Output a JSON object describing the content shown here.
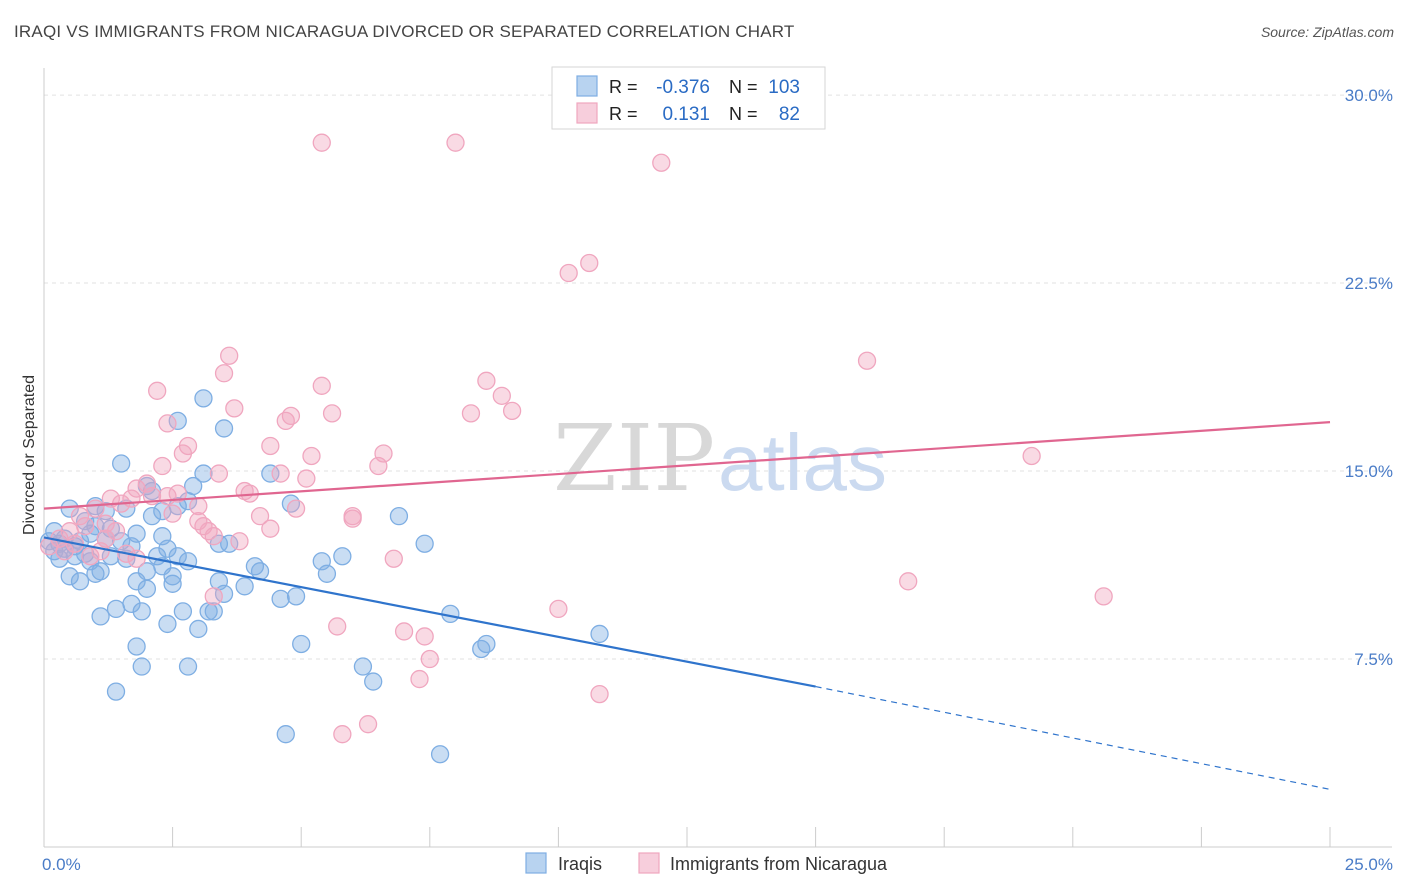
{
  "title": "IRAQI VS IMMIGRANTS FROM NICARAGUA DIVORCED OR SEPARATED CORRELATION CHART",
  "source": "Source: ZipAtlas.com",
  "watermark": {
    "zip": "ZIP",
    "atlas": "atlas"
  },
  "chart_data": {
    "type": "scatter",
    "ylabel": "Divorced or Separated",
    "xlim": [
      0,
      25
    ],
    "ylim": [
      0,
      31
    ],
    "x_ticks": [
      {
        "value": 0,
        "label": "0.0%"
      },
      {
        "value": 25,
        "label": "25.0%"
      }
    ],
    "y_ticks": [
      {
        "value": 7.5,
        "label": "7.5%"
      },
      {
        "value": 15,
        "label": "15.0%"
      },
      {
        "value": 22.5,
        "label": "22.5%"
      },
      {
        "value": 30,
        "label": "30.0%"
      }
    ],
    "grid": true,
    "legend_placement": "top-center",
    "series": [
      {
        "name": "Iraqis",
        "color": "#7eaee3",
        "line_color": "#2f74cc",
        "R": "-0.376",
        "N": "103",
        "trend": {
          "x0": 0,
          "y0": 12.35,
          "x1": 15,
          "y1": 6.4,
          "dash_x1": 25,
          "dash_y1": 2.3
        },
        "points": [
          [
            0.1,
            12.2
          ],
          [
            0.2,
            11.8
          ],
          [
            0.2,
            12.6
          ],
          [
            0.3,
            12.1
          ],
          [
            0.3,
            11.5
          ],
          [
            0.4,
            12.3
          ],
          [
            0.4,
            11.9
          ],
          [
            0.5,
            13.5
          ],
          [
            0.5,
            10.8
          ],
          [
            0.6,
            12.0
          ],
          [
            0.6,
            11.6
          ],
          [
            0.7,
            10.6
          ],
          [
            0.7,
            12.2
          ],
          [
            0.8,
            13.0
          ],
          [
            0.8,
            11.7
          ],
          [
            0.9,
            12.5
          ],
          [
            0.9,
            11.4
          ],
          [
            1.0,
            12.8
          ],
          [
            1.0,
            10.9
          ],
          [
            1.0,
            13.6
          ],
          [
            1.1,
            11.0
          ],
          [
            1.1,
            9.2
          ],
          [
            1.2,
            12.3
          ],
          [
            1.2,
            13.4
          ],
          [
            1.3,
            11.6
          ],
          [
            1.3,
            12.7
          ],
          [
            1.4,
            6.2
          ],
          [
            1.4,
            9.5
          ],
          [
            1.5,
            12.2
          ],
          [
            1.5,
            15.3
          ],
          [
            1.6,
            11.5
          ],
          [
            1.6,
            13.5
          ],
          [
            1.7,
            12.0
          ],
          [
            1.7,
            9.7
          ],
          [
            1.8,
            12.5
          ],
          [
            1.8,
            8.0
          ],
          [
            1.8,
            10.6
          ],
          [
            1.9,
            9.4
          ],
          [
            1.9,
            7.2
          ],
          [
            2.0,
            14.4
          ],
          [
            2.0,
            11.0
          ],
          [
            2.0,
            10.3
          ],
          [
            2.1,
            14.2
          ],
          [
            2.1,
            13.2
          ],
          [
            2.2,
            11.6
          ],
          [
            2.3,
            11.2
          ],
          [
            2.3,
            13.4
          ],
          [
            2.3,
            12.4
          ],
          [
            2.4,
            8.9
          ],
          [
            2.4,
            11.9
          ],
          [
            2.5,
            10.8
          ],
          [
            2.5,
            10.5
          ],
          [
            2.6,
            13.6
          ],
          [
            2.6,
            11.6
          ],
          [
            2.6,
            17.0
          ],
          [
            2.7,
            9.4
          ],
          [
            2.8,
            11.4
          ],
          [
            2.8,
            7.2
          ],
          [
            2.8,
            13.8
          ],
          [
            2.9,
            14.4
          ],
          [
            3.0,
            8.7
          ],
          [
            3.1,
            14.9
          ],
          [
            3.1,
            17.9
          ],
          [
            3.2,
            9.4
          ],
          [
            3.3,
            9.4
          ],
          [
            3.4,
            12.1
          ],
          [
            3.4,
            10.6
          ],
          [
            3.5,
            10.1
          ],
          [
            3.5,
            16.7
          ],
          [
            3.6,
            12.1
          ],
          [
            3.9,
            10.4
          ],
          [
            4.1,
            11.2
          ],
          [
            4.2,
            11.0
          ],
          [
            4.4,
            14.9
          ],
          [
            4.6,
            9.9
          ],
          [
            4.7,
            4.5
          ],
          [
            4.8,
            13.7
          ],
          [
            4.9,
            10.0
          ],
          [
            5.0,
            8.1
          ],
          [
            5.4,
            11.4
          ],
          [
            5.5,
            10.9
          ],
          [
            5.8,
            11.6
          ],
          [
            6.2,
            7.2
          ],
          [
            6.4,
            6.6
          ],
          [
            6.9,
            13.2
          ],
          [
            7.4,
            12.1
          ],
          [
            7.7,
            3.7
          ],
          [
            7.9,
            9.3
          ],
          [
            8.5,
            7.9
          ],
          [
            8.6,
            8.1
          ],
          [
            10.8,
            8.5
          ]
        ]
      },
      {
        "name": "Immigrants from Nicaragua",
        "color": "#f0a6bf",
        "line_color": "#e06690",
        "R": "0.131",
        "N": "82",
        "trend": {
          "x0": 0,
          "y0": 13.5,
          "x1": 25,
          "y1": 16.95
        },
        "points": [
          [
            0.1,
            12.0
          ],
          [
            0.3,
            12.3
          ],
          [
            0.4,
            11.8
          ],
          [
            0.5,
            12.6
          ],
          [
            0.6,
            12.1
          ],
          [
            0.7,
            13.2
          ],
          [
            0.8,
            12.8
          ],
          [
            0.9,
            11.6
          ],
          [
            1.0,
            13.5
          ],
          [
            1.1,
            11.8
          ],
          [
            1.2,
            12.9
          ],
          [
            1.2,
            12.3
          ],
          [
            1.3,
            13.9
          ],
          [
            1.4,
            12.6
          ],
          [
            1.5,
            13.7
          ],
          [
            1.6,
            11.7
          ],
          [
            1.7,
            13.9
          ],
          [
            1.8,
            14.3
          ],
          [
            1.8,
            11.5
          ],
          [
            2.0,
            14.5
          ],
          [
            2.1,
            14.0
          ],
          [
            2.2,
            18.2
          ],
          [
            2.3,
            15.2
          ],
          [
            2.4,
            14.0
          ],
          [
            2.4,
            16.9
          ],
          [
            2.5,
            13.3
          ],
          [
            2.6,
            14.1
          ],
          [
            2.7,
            15.7
          ],
          [
            2.8,
            16.0
          ],
          [
            3.0,
            13.6
          ],
          [
            3.0,
            13.0
          ],
          [
            3.1,
            12.8
          ],
          [
            3.2,
            12.6
          ],
          [
            3.3,
            10.0
          ],
          [
            3.3,
            12.4
          ],
          [
            3.4,
            14.9
          ],
          [
            3.5,
            18.9
          ],
          [
            3.6,
            19.6
          ],
          [
            3.7,
            17.5
          ],
          [
            3.8,
            12.2
          ],
          [
            3.9,
            14.2
          ],
          [
            4.0,
            14.1
          ],
          [
            4.2,
            13.2
          ],
          [
            4.4,
            12.7
          ],
          [
            4.4,
            16.0
          ],
          [
            4.6,
            14.9
          ],
          [
            4.7,
            17.0
          ],
          [
            4.8,
            17.2
          ],
          [
            4.9,
            13.5
          ],
          [
            5.1,
            14.7
          ],
          [
            5.2,
            15.6
          ],
          [
            5.4,
            18.4
          ],
          [
            5.4,
            28.1
          ],
          [
            5.6,
            17.3
          ],
          [
            5.7,
            8.8
          ],
          [
            5.8,
            4.5
          ],
          [
            6.0,
            13.2
          ],
          [
            6.0,
            13.1
          ],
          [
            6.3,
            4.9
          ],
          [
            6.5,
            15.2
          ],
          [
            6.6,
            15.7
          ],
          [
            6.8,
            11.5
          ],
          [
            7.0,
            8.6
          ],
          [
            7.3,
            6.7
          ],
          [
            7.4,
            8.4
          ],
          [
            7.5,
            7.5
          ],
          [
            8.0,
            28.1
          ],
          [
            8.3,
            17.3
          ],
          [
            8.6,
            18.6
          ],
          [
            8.9,
            18.0
          ],
          [
            9.1,
            17.4
          ],
          [
            10.0,
            9.5
          ],
          [
            10.2,
            22.9
          ],
          [
            10.6,
            23.3
          ],
          [
            10.8,
            6.1
          ],
          [
            12.0,
            27.3
          ],
          [
            16.0,
            19.4
          ],
          [
            16.8,
            10.6
          ],
          [
            19.2,
            15.6
          ],
          [
            20.6,
            10.0
          ]
        ]
      }
    ]
  }
}
